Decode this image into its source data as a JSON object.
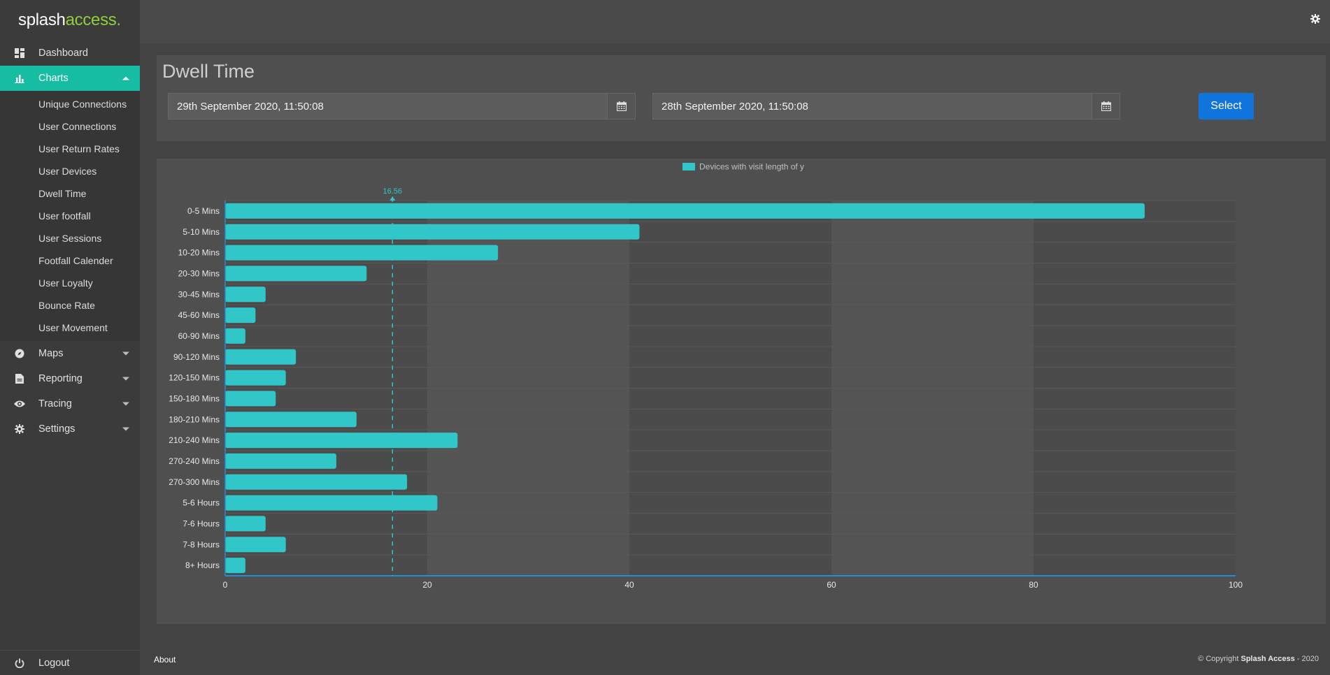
{
  "brand": {
    "part1": "splash",
    "part2": "access.",
    "accent_color": "#8fce3c"
  },
  "sidebar": {
    "active_color": "#17bda3",
    "items": [
      {
        "label": "Dashboard",
        "icon": "dashboard-icon"
      },
      {
        "label": "Charts",
        "icon": "bar-chart-icon",
        "active": true,
        "expanded": true
      },
      {
        "label": "Maps",
        "icon": "compass-icon"
      },
      {
        "label": "Reporting",
        "icon": "file-icon"
      },
      {
        "label": "Tracing",
        "icon": "eye-icon"
      },
      {
        "label": "Settings",
        "icon": "gear-icon"
      }
    ],
    "chart_subitems": [
      "Unique Connections",
      "User Connections",
      "User Return Rates",
      "User Devices",
      "Dwell Time",
      "User footfall",
      "User Sessions",
      "Footfall Calender",
      "User Loyalty",
      "Bounce Rate",
      "User Movement"
    ],
    "logout_label": "Logout"
  },
  "page": {
    "title": "Dwell Time",
    "start_date": "29th September 2020, 11:50:08",
    "end_date": "28th September 2020, 11:50:08",
    "select_label": "Select"
  },
  "chart_data": {
    "type": "bar",
    "orientation": "horizontal",
    "title": "",
    "categories": [
      "0-5 Mins",
      "5-10 Mins",
      "10-20 Mins",
      "20-30 Mins",
      "30-45 Mins",
      "45-60 Mins",
      "60-90 Mins",
      "90-120 Mins",
      "120-150 Mins",
      "150-180 Mins",
      "180-210 Mins",
      "210-240 Mins",
      "270-240 Mins",
      "270-300 Mins",
      "5-6 Hours",
      "7-6 Hours",
      "7-8 Hours",
      "8+ Hours"
    ],
    "series": [
      {
        "name": "Devices with visit length of y",
        "values": [
          91,
          41,
          27,
          14,
          4,
          3,
          2,
          7,
          6,
          5,
          13,
          23,
          11,
          18,
          21,
          4,
          6,
          2
        ],
        "color": "#31c7c9"
      }
    ],
    "xlim": [
      0,
      100
    ],
    "xticks": [
      0,
      20,
      40,
      60,
      80,
      100
    ],
    "reference_line": {
      "value": 16.56,
      "label": "16.56",
      "style": "dashed"
    },
    "legend_position": "top",
    "grid": true
  },
  "footer": {
    "about_label": "About",
    "copyright_prefix": "© Copyright",
    "company": "Splash Access",
    "year_suffix": "- 2020"
  }
}
